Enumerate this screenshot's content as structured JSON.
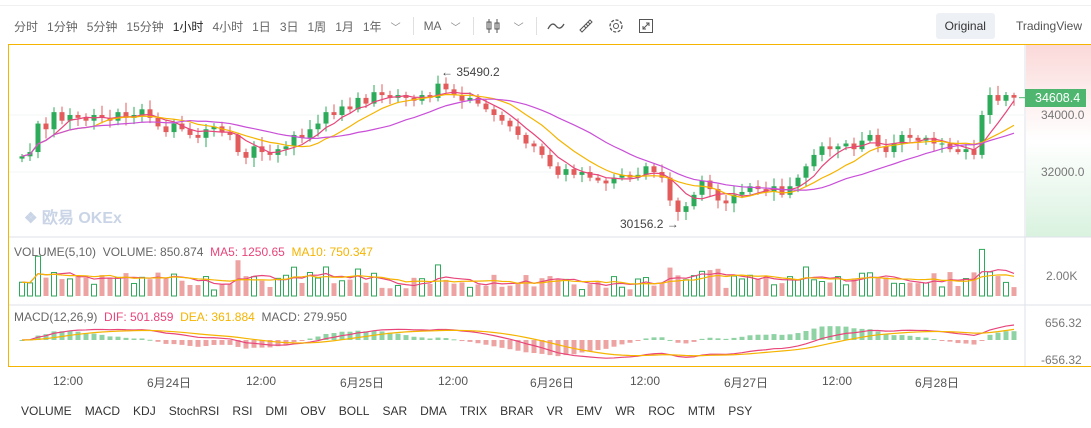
{
  "toolbar": {
    "intervals": [
      "分时",
      "1分钟",
      "5分钟",
      "15分钟",
      "1小时",
      "4小时",
      "1日",
      "3日",
      "1周",
      "1月",
      "1年"
    ],
    "active_interval": "1小时",
    "indicator": "MA",
    "views": [
      "Original",
      "TradingView"
    ],
    "active_view": "Original"
  },
  "watermark": "欧易 OKEx",
  "price_axis": {
    "labels": [
      "34000.0",
      "32000.0"
    ],
    "current_price": "34608.4",
    "high_label": "← 35490.2",
    "low_label": "30156.2 →"
  },
  "volume_panel": {
    "title": "VOLUME(5,10)",
    "volume": "VOLUME: 850.874",
    "ma5": "MA5: 1250.65",
    "ma10": "MA10: 750.347",
    "axis": "2.00K"
  },
  "macd_panel": {
    "title": "MACD(12,26,9)",
    "dif": "DIF: 501.859",
    "dea": "DEA: 361.884",
    "macd": "MACD: 279.950",
    "axis_top": "656.32",
    "axis_bottom": "-656.32"
  },
  "time_axis": [
    "12:00",
    "6月24日",
    "12:00",
    "6月25日",
    "12:00",
    "6月26日",
    "12:00",
    "6月27日",
    "12:00",
    "6月28日"
  ],
  "bottom_indicators": [
    "VOLUME",
    "MACD",
    "KDJ",
    "StochRSI",
    "RSI",
    "DMI",
    "OBV",
    "BOLL",
    "SAR",
    "DMA",
    "TRIX",
    "BRAR",
    "VR",
    "EMV",
    "WR",
    "ROC",
    "MTM",
    "PSY"
  ],
  "colors": {
    "up": "#2daa5a",
    "down": "#e25c5c",
    "ma1": "#e8457a",
    "ma2": "#f5b400",
    "ma3": "#c94fd8",
    "border": "#f5b400"
  },
  "chart_data": {
    "type": "candlestick",
    "interval": "1h",
    "ylim": [
      29500,
      36000
    ],
    "closes": [
      32550,
      32700,
      33700,
      33500,
      34100,
      33800,
      34000,
      33900,
      33800,
      34000,
      33900,
      33800,
      34100,
      33900,
      34000,
      34200,
      33900,
      33600,
      33400,
      33700,
      33500,
      33300,
      33200,
      33500,
      33600,
      33400,
      33300,
      32700,
      32500,
      32900,
      32700,
      32600,
      32800,
      32900,
      33300,
      33200,
      33500,
      33700,
      34100,
      34000,
      34300,
      34200,
      34600,
      34400,
      34800,
      34700,
      34600,
      34700,
      34600,
      34500,
      34700,
      34600,
      35100,
      34900,
      34700,
      34500,
      34600,
      34400,
      34200,
      34000,
      33800,
      33600,
      33300,
      33000,
      32900,
      32600,
      32200,
      31900,
      32100,
      31900,
      32000,
      31800,
      31700,
      31600,
      31800,
      31900,
      31800,
      31900,
      32200,
      32000,
      31800,
      31000,
      30600,
      30800,
      31200,
      31700,
      31400,
      31000,
      30900,
      31200,
      31300,
      31500,
      31400,
      31300,
      31500,
      31200,
      31500,
      31800,
      32200,
      32600,
      32900,
      32800,
      32900,
      33000,
      32800,
      33100,
      33300,
      32900,
      32700,
      33000,
      33300,
      33200,
      33100,
      33200,
      33000,
      33000,
      32800,
      32700,
      32800,
      32600,
      34000,
      34700,
      34500,
      34700,
      34608
    ]
  }
}
